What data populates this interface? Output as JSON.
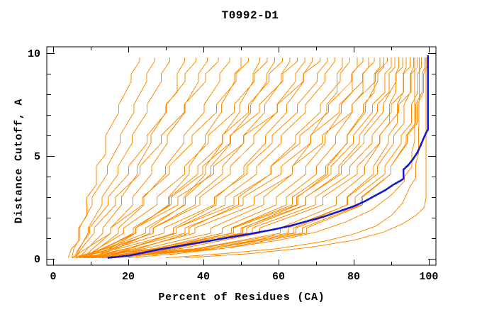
{
  "chart_data": {
    "type": "line",
    "title": "T0992-D1",
    "xlabel": "Percent of Residues (CA)",
    "ylabel": "Distance Cutoff, A",
    "xlim": [
      -1.7,
      101.9
    ],
    "ylim": [
      -0.31,
      10.31
    ],
    "grid": false,
    "legend": "none",
    "x_major_ticks": [
      0,
      20,
      40,
      60,
      80,
      100
    ],
    "x_minor_ticks": [
      10,
      30,
      50,
      70,
      90
    ],
    "y_major_ticks": [
      0,
      5,
      10
    ],
    "y_minor_ticks": [
      1,
      2,
      3,
      4,
      6,
      7,
      8,
      9
    ],
    "colors": {
      "model_curves": "#ff8c00",
      "highlight_curve": "#1a1acd",
      "axis": "#000000",
      "background": "#ffffff"
    },
    "y_levels": [
      0.05,
      0.5,
      1.5,
      3,
      4.5,
      6,
      7.5,
      9,
      9.8
    ],
    "model_curves": [
      {
        "xs": [
          5,
          5.5,
          6.8,
          9,
          11.5,
          14,
          17.5,
          20.8,
          23
        ]
      },
      {
        "xs": [
          6,
          7,
          9.3,
          13,
          17.3,
          21,
          25,
          28.8,
          31
        ]
      },
      {
        "xs": [
          4,
          4.9,
          7,
          10.4,
          14.4,
          17.8,
          21.5,
          24.9,
          27
        ]
      },
      {
        "xs": [
          7,
          9.2,
          13.2,
          18.2,
          22.4,
          26,
          30,
          33,
          35
        ]
      },
      {
        "xs": [
          5.5,
          6.8,
          9.7,
          14.6,
          20.1,
          25,
          30.2,
          35.1,
          38
        ]
      },
      {
        "xs": [
          8,
          10.6,
          15.3,
          21.2,
          26.2,
          30.4,
          35.1,
          38.7,
          41
        ]
      },
      {
        "xs": [
          6,
          7.5,
          10.9,
          16.6,
          23.1,
          28.8,
          34.9,
          40.6,
          44
        ]
      },
      {
        "xs": [
          9,
          12,
          17.4,
          24.2,
          29.9,
          34.8,
          40.2,
          44.3,
          47
        ]
      },
      {
        "xs": [
          7,
          13.5,
          22.1,
          30.7,
          36.2,
          40.5,
          44.8,
          48.3,
          50
        ]
      },
      {
        "xs": [
          5,
          8.8,
          15.3,
          23.8,
          30.9,
          37,
          43.5,
          48.7,
          52
        ]
      },
      {
        "xs": [
          10,
          16.8,
          25.8,
          34.8,
          40.6,
          45.1,
          49.6,
          53.2,
          55
        ]
      },
      {
        "xs": [
          8,
          11.9,
          18.8,
          27.6,
          35,
          41.3,
          48.2,
          53.6,
          57
        ]
      },
      {
        "xs": [
          6,
          14,
          24.6,
          35.2,
          42,
          47.3,
          52.6,
          56.9,
          59
        ]
      },
      {
        "xs": [
          11,
          15,
          22,
          31,
          38.5,
          45,
          52,
          57.5,
          61
        ]
      },
      {
        "xs": [
          7,
          15.4,
          26.6,
          37.8,
          45.1,
          50.7,
          56.3,
          60.8,
          63
        ]
      },
      {
        "xs": [
          9,
          13.5,
          21.3,
          31.4,
          39.8,
          47.1,
          54.9,
          61.1,
          65
        ]
      },
      {
        "xs": [
          5,
          14.3,
          26.7,
          39.1,
          47.2,
          53.4,
          59.6,
          64.5,
          67
        ]
      },
      {
        "xs": [
          12,
          20.6,
          32,
          43.4,
          50.8,
          56.5,
          62.2,
          66.7,
          69
        ]
      },
      {
        "xs": [
          8,
          13,
          21.9,
          33.2,
          42.7,
          50.8,
          59.7,
          66.6,
          71
        ]
      },
      {
        "xs": [
          6,
          16.1,
          29.5,
          42.9,
          51.6,
          58.3,
          65,
          70.3,
          73
        ]
      },
      {
        "xs": [
          10,
          19.8,
          32.8,
          45.8,
          54.2,
          60.7,
          67.2,
          72.4,
          75
        ]
      },
      {
        "xs": [
          7,
          24.5,
          42,
          56,
          63.7,
          68.6,
          72.8,
          75.6,
          77
        ]
      },
      {
        "xs": [
          13,
          22.9,
          36.1,
          49.3,
          57.9,
          64.5,
          71.1,
          76.4,
          79
        ]
      },
      {
        "xs": [
          9,
          27,
          45,
          59.4,
          67.3,
          72.4,
          76.7,
          79.6,
          81
        ]
      },
      {
        "xs": [
          6,
          17.5,
          32.8,
          48.1,
          58,
          65.7,
          73.3,
          79.4,
          82.5
        ]
      },
      {
        "xs": [
          11,
          29.3,
          47.5,
          62.1,
          70.1,
          75.2,
          79.6,
          82.5,
          84
        ]
      },
      {
        "xs": [
          8,
          19.6,
          35.1,
          50.6,
          60.7,
          68.5,
          76.2,
          82.4,
          85.5
        ]
      },
      {
        "xs": [
          14,
          32.3,
          50.5,
          65.1,
          73.1,
          78.2,
          82.6,
          85.5,
          87
        ]
      },
      {
        "xs": [
          7,
          27.3,
          47.5,
          63.7,
          72.6,
          78.3,
          83.1,
          86.4,
          88
        ]
      },
      {
        "xs": [
          10,
          21.9,
          37.7,
          53.5,
          63.7,
          71.6,
          79.5,
          85.8,
          89
        ]
      },
      {
        "xs": [
          6,
          27,
          48,
          64.8,
          74,
          79.9,
          85,
          88.3,
          90
        ]
      },
      {
        "xs": [
          12,
          31.8,
          51.5,
          67.3,
          76,
          81.5,
          86.3,
          89.4,
          91
        ]
      },
      {
        "xs": [
          9,
          38.1,
          60.5,
          75.4,
          82.9,
          87,
          89.5,
          91.2,
          92
        ]
      },
      {
        "xs": [
          7,
          28.5,
          50,
          67.2,
          76.7,
          82.7,
          87.8,
          91.3,
          93
        ]
      },
      {
        "xs": [
          15,
          42.7,
          64,
          78.2,
          85.3,
          89.3,
          91.6,
          93.2,
          94
        ]
      },
      {
        "xs": [
          11,
          32,
          53,
          69.8,
          79,
          84.9,
          90,
          93.3,
          95
        ]
      },
      {
        "xs": [
          8,
          38.8,
          62.6,
          78.4,
          86.3,
          90.7,
          93.4,
          95.1,
          96
        ]
      },
      {
        "xs": [
          13,
          34,
          55,
          71.8,
          81,
          86.9,
          92,
          95.3,
          97
        ]
      },
      {
        "xs": [
          10,
          40.8,
          64.6,
          80.4,
          88.3,
          92.7,
          95.4,
          97.1,
          98
        ]
      },
      {
        "xs": [
          16,
          45.1,
          67.5,
          82.4,
          89.9,
          94,
          96.5,
          98.2,
          99
        ]
      },
      {
        "xs": [
          12,
          42.6,
          66.3,
          82,
          89.9,
          94.3,
          96.9,
          98.6,
          99.5
        ]
      }
    ],
    "flat_model_curves": [
      {
        "points": [
          [
            30,
            0.05
          ],
          [
            45,
            0.25
          ],
          [
            60,
            0.5
          ],
          [
            72,
            0.85
          ],
          [
            80,
            1.2
          ],
          [
            86,
            1.6
          ],
          [
            90,
            2.1
          ],
          [
            93,
            2.7
          ],
          [
            95,
            3.5
          ],
          [
            96.5,
            4.6
          ],
          [
            97.3,
            6
          ],
          [
            97.5,
            9.8
          ]
        ]
      },
      {
        "points": [
          [
            35,
            0.05
          ],
          [
            52,
            0.25
          ],
          [
            68,
            0.55
          ],
          [
            80,
            0.9
          ],
          [
            88,
            1.3
          ],
          [
            93,
            1.7
          ],
          [
            96.5,
            2.1
          ],
          [
            98.8,
            2.5
          ],
          [
            99.3,
            3
          ],
          [
            99.3,
            9.8
          ]
        ]
      },
      {
        "points": [
          [
            20,
            0.05
          ],
          [
            33,
            0.25
          ],
          [
            47,
            0.55
          ],
          [
            60,
            0.9
          ],
          [
            70,
            1.3
          ],
          [
            78,
            1.8
          ],
          [
            85,
            2.4
          ],
          [
            90,
            3.1
          ],
          [
            93.5,
            4
          ],
          [
            95.5,
            5.2
          ],
          [
            96.2,
            6.5
          ],
          [
            96.2,
            9.8
          ]
        ]
      }
    ],
    "highlight_curve": {
      "points": [
        [
          14.5,
          0.05
        ],
        [
          20,
          0.15
        ],
        [
          28,
          0.45
        ],
        [
          36,
          0.7
        ],
        [
          44,
          0.95
        ],
        [
          52,
          1.2
        ],
        [
          58,
          1.4
        ],
        [
          63,
          1.6
        ],
        [
          68,
          1.85
        ],
        [
          72,
          2.05
        ],
        [
          76,
          2.3
        ],
        [
          80,
          2.55
        ],
        [
          83,
          2.8
        ],
        [
          86,
          3.1
        ],
        [
          88.5,
          3.35
        ],
        [
          90.5,
          3.6
        ],
        [
          92.5,
          3.8
        ],
        [
          93.3,
          3.9
        ],
        [
          93.3,
          4.35
        ],
        [
          94.5,
          4.55
        ],
        [
          95.8,
          4.85
        ],
        [
          96.9,
          5.15
        ],
        [
          97.8,
          5.5
        ],
        [
          98.6,
          5.85
        ],
        [
          99.2,
          6.1
        ],
        [
          99.8,
          6.3
        ],
        [
          99.8,
          9.9
        ]
      ]
    }
  }
}
